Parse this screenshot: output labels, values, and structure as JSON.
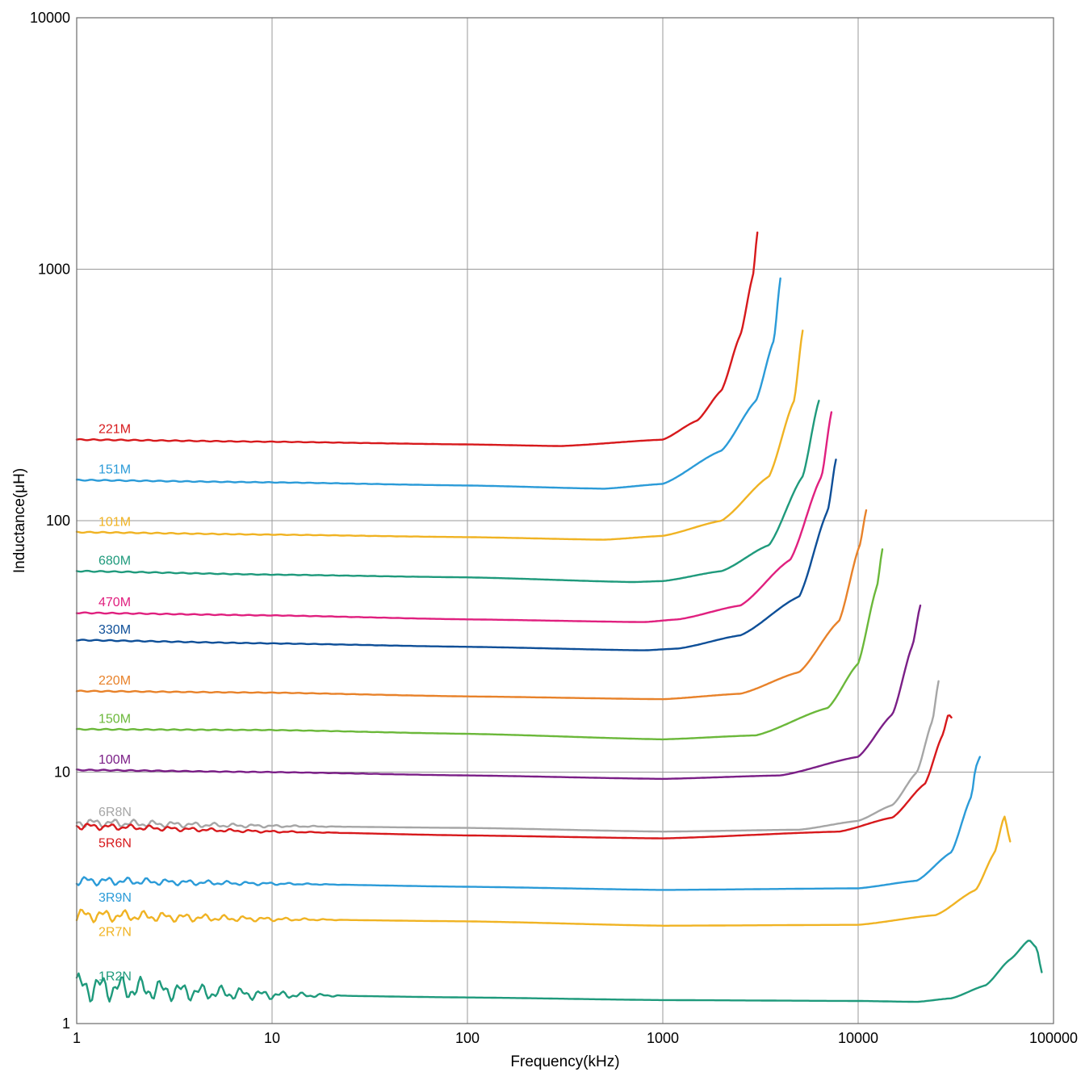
{
  "chart_data": {
    "type": "line",
    "xlabel": "Frequency(kHz)",
    "ylabel": "Inductance(μH)",
    "xscale": "log",
    "yscale": "log",
    "xlim": [
      1,
      100000
    ],
    "ylim": [
      1,
      10000
    ],
    "grid": true,
    "x_ticks": [
      "1",
      "10",
      "100",
      "1000",
      "10000",
      "100000"
    ],
    "y_ticks": [
      "1",
      "10",
      "100",
      "1000",
      "10000"
    ],
    "series": [
      {
        "name": "221M",
        "color": "#d7191c",
        "wiggle": 0,
        "points": [
          [
            1,
            210
          ],
          [
            10,
            206
          ],
          [
            100,
            201
          ],
          [
            300,
            198
          ],
          [
            1000,
            210
          ],
          [
            1500,
            250
          ],
          [
            2000,
            330
          ],
          [
            2500,
            550
          ],
          [
            2900,
            950
          ],
          [
            3050,
            1400
          ]
        ]
      },
      {
        "name": "151M",
        "color": "#2b9bd8",
        "wiggle": 0,
        "points": [
          [
            1,
            145
          ],
          [
            10,
            142
          ],
          [
            100,
            138
          ],
          [
            500,
            134
          ],
          [
            1000,
            140
          ],
          [
            2000,
            190
          ],
          [
            3000,
            300
          ],
          [
            3700,
            520
          ],
          [
            4000,
            920
          ]
        ]
      },
      {
        "name": "101M",
        "color": "#f0b323",
        "wiggle": 0,
        "points": [
          [
            1,
            90
          ],
          [
            10,
            88
          ],
          [
            100,
            86
          ],
          [
            500,
            84
          ],
          [
            1000,
            87
          ],
          [
            2000,
            100
          ],
          [
            3500,
            150
          ],
          [
            4700,
            300
          ],
          [
            5200,
            570
          ]
        ]
      },
      {
        "name": "680M",
        "color": "#1f9a7c",
        "wiggle": 0,
        "points": [
          [
            1,
            63
          ],
          [
            10,
            61
          ],
          [
            100,
            59.5
          ],
          [
            700,
            57
          ],
          [
            1000,
            57.5
          ],
          [
            2000,
            63
          ],
          [
            3500,
            80
          ],
          [
            5200,
            150
          ],
          [
            6300,
            300
          ]
        ]
      },
      {
        "name": "470M",
        "color": "#e0207f",
        "wiggle": 0,
        "points": [
          [
            1,
            43
          ],
          [
            10,
            42
          ],
          [
            100,
            40.5
          ],
          [
            800,
            39.5
          ],
          [
            1200,
            40.5
          ],
          [
            2500,
            46
          ],
          [
            4500,
            70
          ],
          [
            6500,
            150
          ],
          [
            7300,
            270
          ]
        ]
      },
      {
        "name": "330M",
        "color": "#0e4f98",
        "wiggle": 0,
        "points": [
          [
            1,
            33.5
          ],
          [
            10,
            32.5
          ],
          [
            100,
            31.5
          ],
          [
            800,
            30.5
          ],
          [
            1200,
            31
          ],
          [
            2500,
            35
          ],
          [
            5000,
            50
          ],
          [
            7000,
            110
          ],
          [
            7700,
            175
          ]
        ]
      },
      {
        "name": "220M",
        "color": "#e8822a",
        "wiggle": 0,
        "points": [
          [
            1,
            21
          ],
          [
            10,
            20.7
          ],
          [
            100,
            20
          ],
          [
            1000,
            19.5
          ],
          [
            2500,
            20.5
          ],
          [
            5000,
            25
          ],
          [
            8000,
            40
          ],
          [
            10200,
            80
          ],
          [
            11000,
            110
          ]
        ]
      },
      {
        "name": "150M",
        "color": "#6bb83a",
        "wiggle": 0,
        "points": [
          [
            1,
            14.8
          ],
          [
            10,
            14.7
          ],
          [
            100,
            14.2
          ],
          [
            1000,
            13.5
          ],
          [
            3000,
            14
          ],
          [
            7000,
            18
          ],
          [
            10000,
            27
          ],
          [
            12500,
            55
          ],
          [
            13300,
            77
          ]
        ]
      },
      {
        "name": "100M",
        "color": "#7b1f87",
        "wiggle": 0,
        "points": [
          [
            1,
            10.2
          ],
          [
            10,
            10
          ],
          [
            100,
            9.7
          ],
          [
            1000,
            9.4
          ],
          [
            4000,
            9.7
          ],
          [
            10000,
            11.5
          ],
          [
            15000,
            17
          ],
          [
            19000,
            32
          ],
          [
            20800,
            46
          ]
        ]
      },
      {
        "name": "6R8N",
        "color": "#a6a6a6",
        "wiggle": 0.04,
        "points": [
          [
            1,
            6.3
          ],
          [
            10,
            6.1
          ],
          [
            100,
            6
          ],
          [
            1000,
            5.8
          ],
          [
            5000,
            5.9
          ],
          [
            10000,
            6.4
          ],
          [
            15000,
            7.4
          ],
          [
            20000,
            10
          ],
          [
            24000,
            16
          ],
          [
            25800,
            23
          ]
        ]
      },
      {
        "name": "5R6N",
        "color": "#d7191c",
        "wiggle": 0.03,
        "points": [
          [
            1,
            6.1
          ],
          [
            10,
            5.8
          ],
          [
            100,
            5.6
          ],
          [
            1000,
            5.45
          ],
          [
            8000,
            5.8
          ],
          [
            15000,
            6.6
          ],
          [
            22000,
            9
          ],
          [
            27000,
            14
          ],
          [
            29000,
            17
          ],
          [
            30000,
            16.5
          ]
        ]
      },
      {
        "name": "3R9N",
        "color": "#2b9bd8",
        "wiggle": 0.04,
        "points": [
          [
            1,
            3.7
          ],
          [
            10,
            3.6
          ],
          [
            100,
            3.5
          ],
          [
            1000,
            3.4
          ],
          [
            10000,
            3.45
          ],
          [
            20000,
            3.7
          ],
          [
            30000,
            4.8
          ],
          [
            38000,
            8
          ],
          [
            40000,
            10.5
          ],
          [
            42000,
            11.5
          ]
        ]
      },
      {
        "name": "2R7N",
        "color": "#f0b323",
        "wiggle": 0.06,
        "points": [
          [
            1,
            2.7
          ],
          [
            10,
            2.6
          ],
          [
            100,
            2.55
          ],
          [
            1000,
            2.45
          ],
          [
            10000,
            2.47
          ],
          [
            25000,
            2.7
          ],
          [
            40000,
            3.4
          ],
          [
            50000,
            4.8
          ],
          [
            56000,
            6.7
          ],
          [
            60000,
            5.3
          ]
        ]
      },
      {
        "name": "1R2N",
        "color": "#1f9a7c",
        "wiggle": 0.13,
        "points": [
          [
            1,
            1.4
          ],
          [
            10,
            1.3
          ],
          [
            100,
            1.27
          ],
          [
            1000,
            1.24
          ],
          [
            10000,
            1.23
          ],
          [
            20000,
            1.22
          ],
          [
            30000,
            1.26
          ],
          [
            45000,
            1.42
          ],
          [
            60000,
            1.8
          ],
          [
            75000,
            2.15
          ],
          [
            82000,
            2
          ],
          [
            87000,
            1.6
          ]
        ]
      }
    ]
  }
}
